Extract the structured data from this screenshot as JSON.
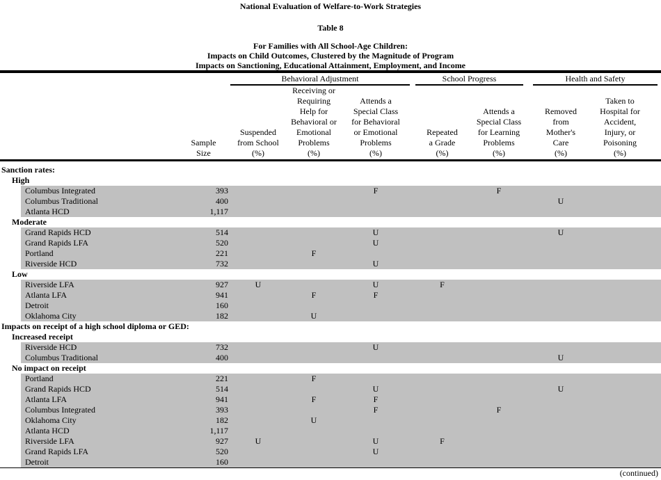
{
  "header": {
    "title": "National Evaluation of Welfare-to-Work Strategies",
    "table_label": "Table 8",
    "subtitle_lines": [
      "For Families with All School-Age Children:",
      "Impacts on Child Outcomes, Clustered by the Magnitude of Program",
      "Impacts on Sanctioning, Educational Attainment, Employment, and Income"
    ]
  },
  "table": {
    "column_groups": [
      {
        "key": "beh",
        "label": "Behavioral Adjustment"
      },
      {
        "key": "school",
        "label": "School Progress"
      },
      {
        "key": "health",
        "label": "Health and Safety"
      }
    ],
    "columns": [
      {
        "key": "sample",
        "header": "Sample\nSize"
      },
      {
        "key": "suspended",
        "header": "Suspended\nfrom School\n(%)"
      },
      {
        "key": "receiving",
        "header": "Receiving or\nRequiring\nHelp for\nBehavioral or\nEmotional\nProblems\n(%)"
      },
      {
        "key": "attends_beh",
        "header": "Attends a\nSpecial Class\nfor Behavioral\nor Emotional\nProblems\n(%)"
      },
      {
        "key": "repeated",
        "header": "Repeated\na Grade\n(%)"
      },
      {
        "key": "attends_learn",
        "header": "Attends a\nSpecial Class\nfor Learning\nProblems\n(%)"
      },
      {
        "key": "removed",
        "header": "Removed\nfrom\nMother's\nCare\n(%)"
      },
      {
        "key": "taken",
        "header": "Taken to\nHospital for\nAccident,\nInjury, or\nPoisoning\n(%)"
      }
    ],
    "rows": [
      {
        "type": "section",
        "label": "Sanction rates:"
      },
      {
        "type": "subsection",
        "label": "High"
      },
      {
        "type": "data",
        "label": "Columbus Integrated",
        "sample": "393",
        "attends_beh": "F",
        "attends_learn": "F"
      },
      {
        "type": "data",
        "label": "Columbus Traditional",
        "sample": "400",
        "removed": "U"
      },
      {
        "type": "data",
        "label": "Atlanta HCD",
        "sample": "1,117"
      },
      {
        "type": "subsection",
        "label": "Moderate"
      },
      {
        "type": "data",
        "label": "Grand Rapids HCD",
        "sample": "514",
        "attends_beh": "U",
        "removed": "U"
      },
      {
        "type": "data",
        "label": "Grand Rapids LFA",
        "sample": "520",
        "attends_beh": "U"
      },
      {
        "type": "data",
        "label": "Portland",
        "sample": "221",
        "receiving": "F"
      },
      {
        "type": "data",
        "label": "Riverside HCD",
        "sample": "732",
        "attends_beh": "U"
      },
      {
        "type": "subsection",
        "label": "Low"
      },
      {
        "type": "data",
        "label": "Riverside LFA",
        "sample": "927",
        "suspended": "U",
        "attends_beh": "U",
        "repeated": "F"
      },
      {
        "type": "data",
        "label": "Atlanta LFA",
        "sample": "941",
        "receiving": "F",
        "attends_beh": "F"
      },
      {
        "type": "data",
        "label": "Detroit",
        "sample": "160"
      },
      {
        "type": "data",
        "label": "Oklahoma City",
        "sample": "182",
        "receiving": "U"
      },
      {
        "type": "section",
        "label": "Impacts on receipt of a high school diploma or GED:"
      },
      {
        "type": "subsection",
        "label": "Increased receipt"
      },
      {
        "type": "data",
        "label": "Riverside HCD",
        "sample": "732",
        "attends_beh": "U"
      },
      {
        "type": "data",
        "label": "Columbus Traditional",
        "sample": "400",
        "removed": "U"
      },
      {
        "type": "subsection",
        "label": "No impact on receipt"
      },
      {
        "type": "data",
        "label": "Portland",
        "sample": "221",
        "receiving": "F"
      },
      {
        "type": "data",
        "label": "Grand Rapids HCD",
        "sample": "514",
        "attends_beh": "U",
        "removed": "U"
      },
      {
        "type": "data",
        "label": "Atlanta LFA",
        "sample": "941",
        "receiving": "F",
        "attends_beh": "F"
      },
      {
        "type": "data",
        "label": "Columbus Integrated",
        "sample": "393",
        "attends_beh": "F",
        "attends_learn": "F"
      },
      {
        "type": "data",
        "label": "Oklahoma City",
        "sample": "182",
        "receiving": "U"
      },
      {
        "type": "data",
        "label": "Atlanta HCD",
        "sample": "1,117"
      },
      {
        "type": "data",
        "label": "Riverside LFA",
        "sample": "927",
        "suspended": "U",
        "attends_beh": "U",
        "repeated": "F"
      },
      {
        "type": "data",
        "label": "Grand Rapids LFA",
        "sample": "520",
        "attends_beh": "U"
      },
      {
        "type": "data",
        "label": "Detroit",
        "sample": "160"
      }
    ],
    "footer": "(continued)",
    "colors": {
      "row_shade": "#c0c0c0",
      "rule": "#000000"
    }
  }
}
